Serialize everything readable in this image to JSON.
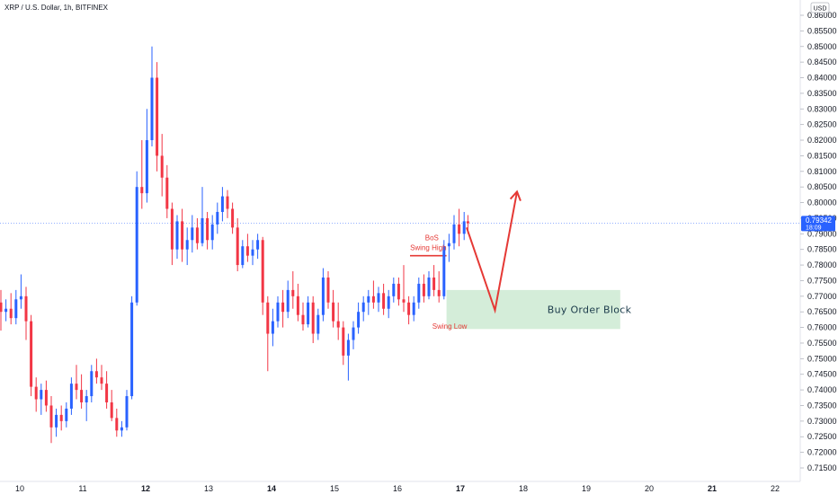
{
  "chart_data": {
    "type": "candlestick",
    "title": "XRP / U.S. Dollar, 1h, BITFINEX",
    "currency": "USD",
    "ylim": [
      0.71,
      0.8625
    ],
    "y_ticks": [
      "0.86000",
      "0.85500",
      "0.85000",
      "0.84500",
      "0.84000",
      "0.83500",
      "0.83000",
      "0.82500",
      "0.82000",
      "0.81500",
      "0.81000",
      "0.80500",
      "0.80000",
      "0.79500",
      "0.79000",
      "0.78500",
      "0.78000",
      "0.77500",
      "0.77000",
      "0.76500",
      "0.76000",
      "0.75500",
      "0.75000",
      "0.74500",
      "0.74000",
      "0.73500",
      "0.73000",
      "0.72500",
      "0.72000",
      "0.71500"
    ],
    "x_ticks": [
      "10",
      "11",
      "12",
      "13",
      "14",
      "15",
      "16",
      "17",
      "18",
      "19",
      "20",
      "21",
      "22"
    ],
    "bold_x_ticks": [
      "12",
      "14",
      "17",
      "21"
    ],
    "last_price": "0.79342",
    "countdown": "18:09",
    "annotations": {
      "bos_label": "BoS",
      "swing_high_label": "Swing High",
      "swing_high_price": 0.783,
      "swing_low_label": "Swing Low",
      "swing_low_price": 0.759,
      "order_block_label": "Buy Order Block",
      "order_block_range": [
        0.7595,
        0.772
      ],
      "projection": [
        [
          17.1,
          0.792
        ],
        [
          17.55,
          0.7655
        ],
        [
          17.9,
          0.8035
        ]
      ]
    },
    "colors": {
      "up": "#2962ff",
      "down": "#f23645",
      "annotation": "#e53935",
      "order_block": "#d4edd9",
      "price_tag": "#2962ff"
    },
    "candles": [
      {
        "t": 9.7,
        "o": 0.768,
        "h": 0.772,
        "l": 0.759,
        "c": 0.765
      },
      {
        "t": 9.78,
        "o": 0.765,
        "h": 0.769,
        "l": 0.762,
        "c": 0.766
      },
      {
        "t": 9.86,
        "o": 0.766,
        "h": 0.771,
        "l": 0.761,
        "c": 0.763
      },
      {
        "t": 9.94,
        "o": 0.763,
        "h": 0.772,
        "l": 0.761,
        "c": 0.769
      },
      {
        "t": 10.02,
        "o": 0.769,
        "h": 0.777,
        "l": 0.766,
        "c": 0.77
      },
      {
        "t": 10.1,
        "o": 0.77,
        "h": 0.773,
        "l": 0.756,
        "c": 0.762
      },
      {
        "t": 10.18,
        "o": 0.762,
        "h": 0.764,
        "l": 0.738,
        "c": 0.741
      },
      {
        "t": 10.26,
        "o": 0.741,
        "h": 0.744,
        "l": 0.733,
        "c": 0.737
      },
      {
        "t": 10.34,
        "o": 0.737,
        "h": 0.742,
        "l": 0.732,
        "c": 0.74
      },
      {
        "t": 10.42,
        "o": 0.74,
        "h": 0.743,
        "l": 0.733,
        "c": 0.735
      },
      {
        "t": 10.5,
        "o": 0.735,
        "h": 0.738,
        "l": 0.723,
        "c": 0.728
      },
      {
        "t": 10.58,
        "o": 0.728,
        "h": 0.734,
        "l": 0.725,
        "c": 0.732
      },
      {
        "t": 10.66,
        "o": 0.732,
        "h": 0.735,
        "l": 0.727,
        "c": 0.73
      },
      {
        "t": 10.74,
        "o": 0.73,
        "h": 0.736,
        "l": 0.728,
        "c": 0.734
      },
      {
        "t": 10.82,
        "o": 0.734,
        "h": 0.744,
        "l": 0.732,
        "c": 0.742
      },
      {
        "t": 10.9,
        "o": 0.742,
        "h": 0.748,
        "l": 0.737,
        "c": 0.74
      },
      {
        "t": 10.98,
        "o": 0.74,
        "h": 0.745,
        "l": 0.734,
        "c": 0.736
      },
      {
        "t": 11.06,
        "o": 0.736,
        "h": 0.74,
        "l": 0.73,
        "c": 0.738
      },
      {
        "t": 11.14,
        "o": 0.738,
        "h": 0.748,
        "l": 0.736,
        "c": 0.746
      },
      {
        "t": 11.22,
        "o": 0.746,
        "h": 0.75,
        "l": 0.742,
        "c": 0.744
      },
      {
        "t": 11.3,
        "o": 0.744,
        "h": 0.748,
        "l": 0.74,
        "c": 0.742
      },
      {
        "t": 11.38,
        "o": 0.742,
        "h": 0.746,
        "l": 0.734,
        "c": 0.736
      },
      {
        "t": 11.46,
        "o": 0.736,
        "h": 0.74,
        "l": 0.73,
        "c": 0.731
      },
      {
        "t": 11.54,
        "o": 0.731,
        "h": 0.734,
        "l": 0.725,
        "c": 0.727
      },
      {
        "t": 11.62,
        "o": 0.727,
        "h": 0.73,
        "l": 0.725,
        "c": 0.728
      },
      {
        "t": 11.7,
        "o": 0.728,
        "h": 0.74,
        "l": 0.727,
        "c": 0.738
      },
      {
        "t": 11.78,
        "o": 0.738,
        "h": 0.77,
        "l": 0.737,
        "c": 0.768
      },
      {
        "t": 11.86,
        "o": 0.768,
        "h": 0.81,
        "l": 0.767,
        "c": 0.805
      },
      {
        "t": 11.94,
        "o": 0.805,
        "h": 0.82,
        "l": 0.798,
        "c": 0.803
      },
      {
        "t": 12.02,
        "o": 0.803,
        "h": 0.83,
        "l": 0.8,
        "c": 0.82
      },
      {
        "t": 12.1,
        "o": 0.82,
        "h": 0.85,
        "l": 0.818,
        "c": 0.84
      },
      {
        "t": 12.18,
        "o": 0.84,
        "h": 0.845,
        "l": 0.81,
        "c": 0.815
      },
      {
        "t": 12.26,
        "o": 0.815,
        "h": 0.822,
        "l": 0.802,
        "c": 0.808
      },
      {
        "t": 12.34,
        "o": 0.808,
        "h": 0.812,
        "l": 0.795,
        "c": 0.798
      },
      {
        "t": 12.42,
        "o": 0.798,
        "h": 0.8,
        "l": 0.78,
        "c": 0.785
      },
      {
        "t": 12.5,
        "o": 0.785,
        "h": 0.796,
        "l": 0.782,
        "c": 0.794
      },
      {
        "t": 12.58,
        "o": 0.794,
        "h": 0.798,
        "l": 0.781,
        "c": 0.785
      },
      {
        "t": 12.66,
        "o": 0.785,
        "h": 0.792,
        "l": 0.78,
        "c": 0.788
      },
      {
        "t": 12.74,
        "o": 0.788,
        "h": 0.796,
        "l": 0.784,
        "c": 0.792
      },
      {
        "t": 12.82,
        "o": 0.792,
        "h": 0.795,
        "l": 0.785,
        "c": 0.787
      },
      {
        "t": 12.9,
        "o": 0.787,
        "h": 0.805,
        "l": 0.786,
        "c": 0.795
      },
      {
        "t": 12.98,
        "o": 0.795,
        "h": 0.797,
        "l": 0.785,
        "c": 0.788
      },
      {
        "t": 13.06,
        "o": 0.788,
        "h": 0.796,
        "l": 0.785,
        "c": 0.793
      },
      {
        "t": 13.14,
        "o": 0.793,
        "h": 0.8,
        "l": 0.79,
        "c": 0.797
      },
      {
        "t": 13.22,
        "o": 0.797,
        "h": 0.805,
        "l": 0.794,
        "c": 0.802
      },
      {
        "t": 13.3,
        "o": 0.802,
        "h": 0.804,
        "l": 0.795,
        "c": 0.798
      },
      {
        "t": 13.38,
        "o": 0.798,
        "h": 0.8,
        "l": 0.79,
        "c": 0.792
      },
      {
        "t": 13.46,
        "o": 0.792,
        "h": 0.795,
        "l": 0.778,
        "c": 0.78
      },
      {
        "t": 13.54,
        "o": 0.78,
        "h": 0.788,
        "l": 0.779,
        "c": 0.786
      },
      {
        "t": 13.62,
        "o": 0.786,
        "h": 0.79,
        "l": 0.781,
        "c": 0.783
      },
      {
        "t": 13.7,
        "o": 0.783,
        "h": 0.788,
        "l": 0.78,
        "c": 0.785
      },
      {
        "t": 13.78,
        "o": 0.785,
        "h": 0.79,
        "l": 0.782,
        "c": 0.788
      },
      {
        "t": 13.86,
        "o": 0.788,
        "h": 0.789,
        "l": 0.764,
        "c": 0.768
      },
      {
        "t": 13.94,
        "o": 0.768,
        "h": 0.77,
        "l": 0.746,
        "c": 0.758
      },
      {
        "t": 14.02,
        "o": 0.758,
        "h": 0.766,
        "l": 0.754,
        "c": 0.762
      },
      {
        "t": 14.1,
        "o": 0.762,
        "h": 0.77,
        "l": 0.76,
        "c": 0.768
      },
      {
        "t": 14.18,
        "o": 0.768,
        "h": 0.772,
        "l": 0.76,
        "c": 0.765
      },
      {
        "t": 14.26,
        "o": 0.765,
        "h": 0.775,
        "l": 0.763,
        "c": 0.772
      },
      {
        "t": 14.34,
        "o": 0.772,
        "h": 0.778,
        "l": 0.766,
        "c": 0.77
      },
      {
        "t": 14.42,
        "o": 0.77,
        "h": 0.774,
        "l": 0.762,
        "c": 0.764
      },
      {
        "t": 14.5,
        "o": 0.764,
        "h": 0.768,
        "l": 0.759,
        "c": 0.761
      },
      {
        "t": 14.58,
        "o": 0.761,
        "h": 0.77,
        "l": 0.76,
        "c": 0.768
      },
      {
        "t": 14.66,
        "o": 0.768,
        "h": 0.77,
        "l": 0.755,
        "c": 0.758
      },
      {
        "t": 14.74,
        "o": 0.758,
        "h": 0.766,
        "l": 0.756,
        "c": 0.764
      },
      {
        "t": 14.82,
        "o": 0.764,
        "h": 0.779,
        "l": 0.762,
        "c": 0.776
      },
      {
        "t": 14.9,
        "o": 0.776,
        "h": 0.778,
        "l": 0.766,
        "c": 0.768
      },
      {
        "t": 14.98,
        "o": 0.768,
        "h": 0.772,
        "l": 0.76,
        "c": 0.762
      },
      {
        "t": 15.06,
        "o": 0.762,
        "h": 0.768,
        "l": 0.756,
        "c": 0.76
      },
      {
        "t": 15.14,
        "o": 0.76,
        "h": 0.762,
        "l": 0.748,
        "c": 0.751
      },
      {
        "t": 15.22,
        "o": 0.751,
        "h": 0.758,
        "l": 0.743,
        "c": 0.756
      },
      {
        "t": 15.3,
        "o": 0.756,
        "h": 0.762,
        "l": 0.753,
        "c": 0.76
      },
      {
        "t": 15.38,
        "o": 0.76,
        "h": 0.768,
        "l": 0.758,
        "c": 0.765
      },
      {
        "t": 15.46,
        "o": 0.765,
        "h": 0.77,
        "l": 0.762,
        "c": 0.768
      },
      {
        "t": 15.54,
        "o": 0.768,
        "h": 0.772,
        "l": 0.764,
        "c": 0.77
      },
      {
        "t": 15.62,
        "o": 0.77,
        "h": 0.775,
        "l": 0.766,
        "c": 0.768
      },
      {
        "t": 15.7,
        "o": 0.768,
        "h": 0.773,
        "l": 0.765,
        "c": 0.771
      },
      {
        "t": 15.78,
        "o": 0.771,
        "h": 0.774,
        "l": 0.764,
        "c": 0.766
      },
      {
        "t": 15.86,
        "o": 0.766,
        "h": 0.772,
        "l": 0.763,
        "c": 0.77
      },
      {
        "t": 15.94,
        "o": 0.77,
        "h": 0.776,
        "l": 0.768,
        "c": 0.774
      },
      {
        "t": 16.02,
        "o": 0.774,
        "h": 0.776,
        "l": 0.767,
        "c": 0.769
      },
      {
        "t": 16.1,
        "o": 0.769,
        "h": 0.78,
        "l": 0.765,
        "c": 0.768
      },
      {
        "t": 16.18,
        "o": 0.768,
        "h": 0.77,
        "l": 0.761,
        "c": 0.764
      },
      {
        "t": 16.26,
        "o": 0.764,
        "h": 0.77,
        "l": 0.762,
        "c": 0.768
      },
      {
        "t": 16.34,
        "o": 0.768,
        "h": 0.776,
        "l": 0.766,
        "c": 0.774
      },
      {
        "t": 16.42,
        "o": 0.774,
        "h": 0.777,
        "l": 0.768,
        "c": 0.77
      },
      {
        "t": 16.5,
        "o": 0.77,
        "h": 0.778,
        "l": 0.769,
        "c": 0.776
      },
      {
        "t": 16.58,
        "o": 0.776,
        "h": 0.78,
        "l": 0.77,
        "c": 0.772
      },
      {
        "t": 16.66,
        "o": 0.772,
        "h": 0.778,
        "l": 0.768,
        "c": 0.77
      },
      {
        "t": 16.74,
        "o": 0.77,
        "h": 0.788,
        "l": 0.769,
        "c": 0.786
      },
      {
        "t": 16.82,
        "o": 0.786,
        "h": 0.79,
        "l": 0.781,
        "c": 0.787
      },
      {
        "t": 16.9,
        "o": 0.787,
        "h": 0.796,
        "l": 0.785,
        "c": 0.793
      },
      {
        "t": 16.98,
        "o": 0.793,
        "h": 0.798,
        "l": 0.786,
        "c": 0.79
      },
      {
        "t": 17.06,
        "o": 0.79,
        "h": 0.797,
        "l": 0.788,
        "c": 0.794
      },
      {
        "t": 17.12,
        "o": 0.794,
        "h": 0.796,
        "l": 0.79,
        "c": 0.7934
      }
    ]
  }
}
